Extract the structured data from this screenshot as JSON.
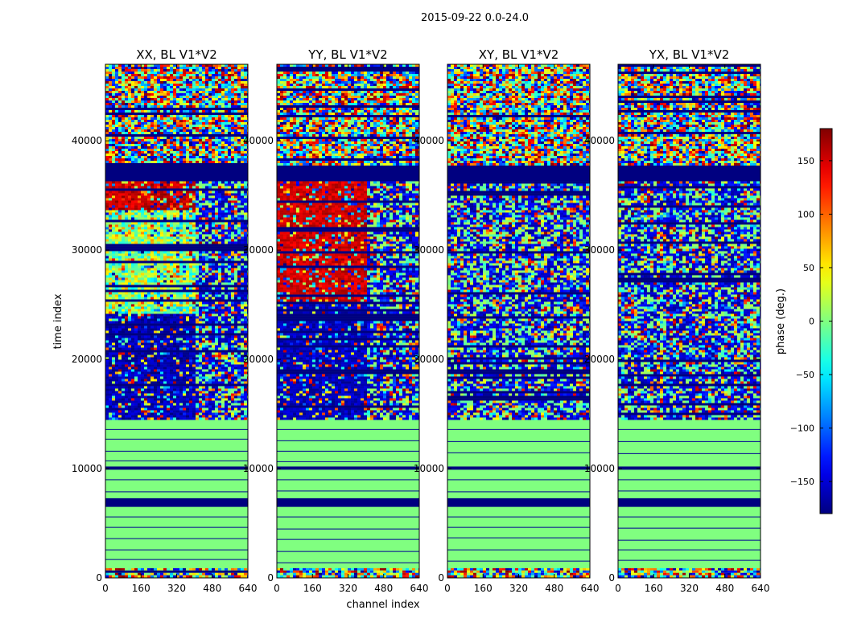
{
  "figure": {
    "suptitle": "2015-09-22 0.0-24.0"
  },
  "chart_data": {
    "type": "heatmap",
    "xlabel": "channel index",
    "ylabel": "time index",
    "xlim": [
      0,
      640
    ],
    "ylim": [
      0,
      47000
    ],
    "xticks": [
      0,
      160,
      320,
      480,
      640
    ],
    "yticks": [
      0,
      10000,
      20000,
      30000,
      40000
    ],
    "panels": [
      {
        "title": "XX, BL V1*V2",
        "mode": "xx"
      },
      {
        "title": "YY, BL V1*V2",
        "mode": "yy"
      },
      {
        "title": "XY, BL V1*V2",
        "mode": "cross"
      },
      {
        "title": "YX, BL V1*V2",
        "mode": "cross"
      }
    ],
    "bands": [
      {
        "from": 0,
        "to": 900,
        "kind": "noise"
      },
      {
        "from": 900,
        "to": 6500,
        "kind": "flat",
        "value": 0
      },
      {
        "from": 6500,
        "to": 7300,
        "kind": "flag"
      },
      {
        "from": 7300,
        "to": 9900,
        "kind": "flat",
        "value": 0
      },
      {
        "from": 9900,
        "to": 10200,
        "kind": "flag"
      },
      {
        "from": 10200,
        "to": 14500,
        "kind": "flat",
        "value": 0
      },
      {
        "from": 14500,
        "to": 36300,
        "kind": "signal"
      },
      {
        "from": 36300,
        "to": 37900,
        "kind": "flag"
      },
      {
        "from": 37900,
        "to": 47000,
        "kind": "noise"
      }
    ],
    "colorbar": {
      "label": "phase (deg.)",
      "min": -180,
      "max": 180,
      "ticks": [
        150,
        100,
        50,
        0,
        -50,
        -100,
        -150
      ],
      "colormap": "jet"
    }
  }
}
